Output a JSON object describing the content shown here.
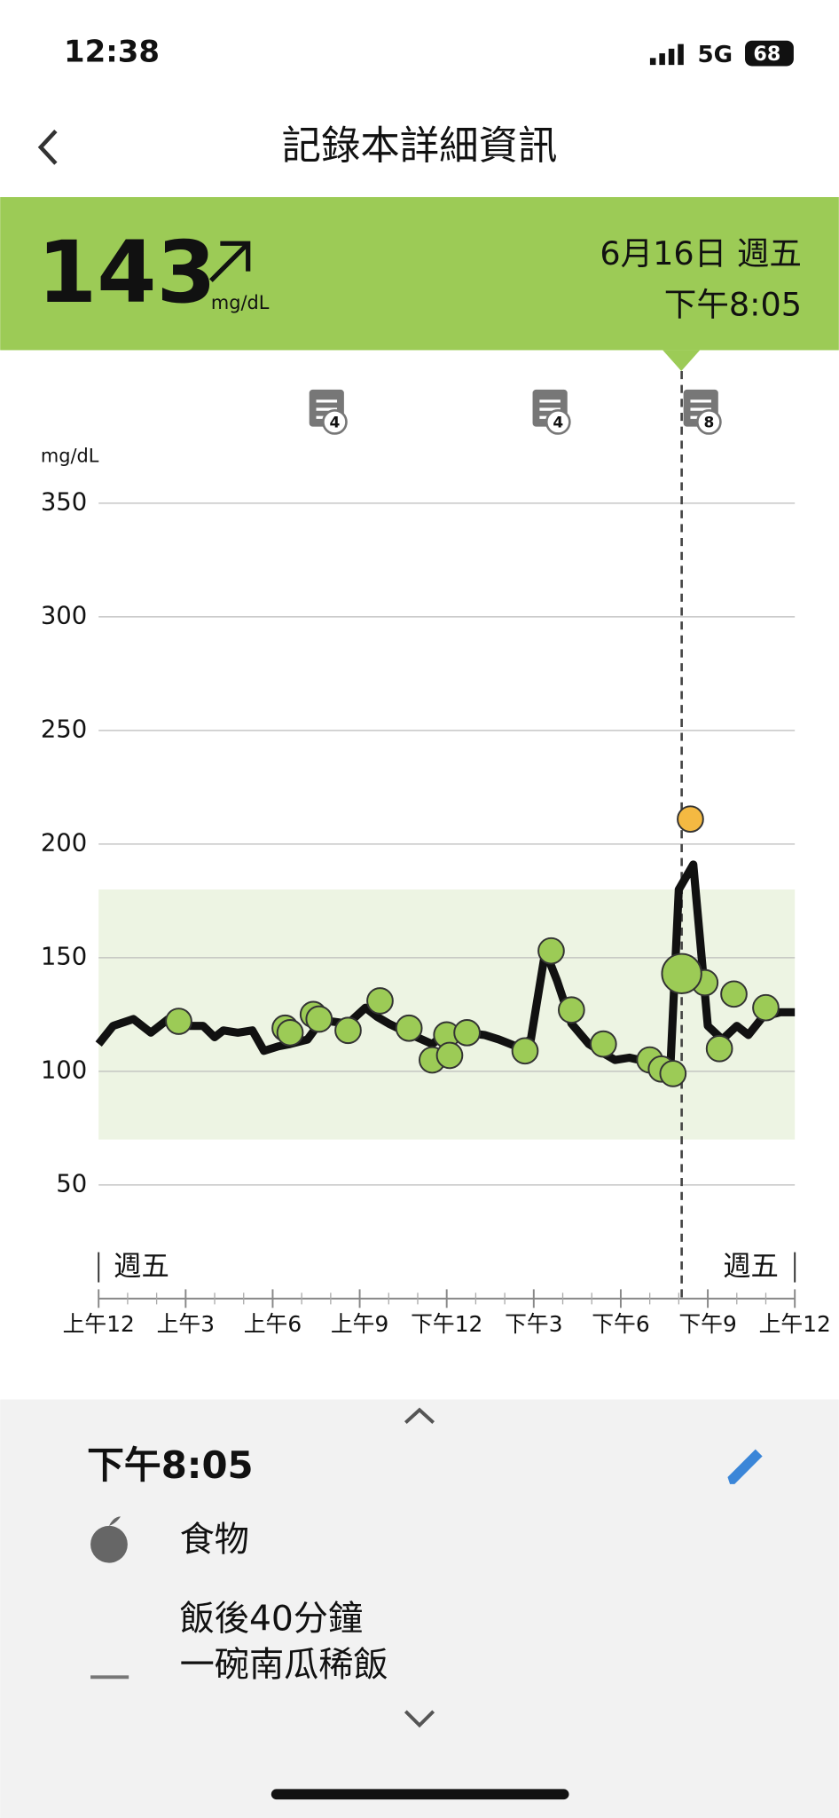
{
  "status_bar": {
    "time": "12:38",
    "network": "5G",
    "battery": "68"
  },
  "header": {
    "title": "記錄本詳細資訊"
  },
  "reading": {
    "unit": "mg/dL",
    "date": "6月16日 週五",
    "time": "下午8:05"
  },
  "chart_data": {
    "type": "line",
    "y_label": "mg/dL",
    "xlim": [
      0,
      24
    ],
    "ylim": [
      0,
      350
    ],
    "yticks": [
      50,
      100,
      150,
      200,
      250,
      300,
      350
    ],
    "xticks": [
      {
        "value": 0,
        "label": "上午12"
      },
      {
        "value": 3,
        "label": "上午3"
      },
      {
        "value": 6,
        "label": "上午6"
      },
      {
        "value": 9,
        "label": "上午9"
      },
      {
        "value": 12,
        "label": "下午12"
      },
      {
        "value": 15,
        "label": "下午3"
      },
      {
        "value": 18,
        "label": "下午6"
      },
      {
        "value": 21,
        "label": "下午9"
      },
      {
        "value": 24,
        "label": "上午12"
      }
    ],
    "xminorticks": [
      1,
      2,
      4,
      5,
      7,
      8,
      10,
      11,
      13,
      14,
      16,
      17,
      19,
      20,
      22,
      23
    ],
    "grid": true,
    "day_labels": [
      "週五",
      "週五"
    ],
    "target_range": [
      70,
      180
    ],
    "target_color": "#edf4e3",
    "line": {
      "color": "#111111",
      "x": [
        0,
        0.5,
        1.2,
        1.8,
        2.4,
        3,
        3.6,
        4,
        4.3,
        4.8,
        5.3,
        5.7,
        6.2,
        6.6,
        7.2,
        7.6,
        8,
        8.6,
        9.2,
        9.6,
        10,
        10.8,
        11.5,
        12,
        12.6,
        13.3,
        13.8,
        14.4,
        14.9,
        15.4,
        15.8,
        16.3,
        16.9,
        17.4,
        17.8,
        18.3,
        19,
        19.7,
        20,
        20.5,
        21,
        21.5,
        22,
        22.4,
        22.9,
        23.5,
        24
      ],
      "values": [
        112,
        120,
        123,
        117,
        123,
        120,
        120,
        115,
        118,
        117,
        118,
        109,
        111,
        112,
        114,
        121,
        122,
        121,
        128,
        124,
        121,
        116,
        112,
        117,
        117,
        116,
        114,
        111,
        114,
        153,
        140,
        121,
        112,
        108,
        105,
        106,
        104,
        99,
        180,
        191,
        120,
        114,
        120,
        116,
        124,
        126,
        126
      ]
    },
    "points": {
      "color": "#9ccb56",
      "x": [
        2.76,
        6.43,
        6.6,
        7.4,
        7.6,
        8.6,
        9.7,
        10.7,
        11.5,
        12,
        12.1,
        12.7,
        14.7,
        15.6,
        16.3,
        17.4,
        19,
        19.4,
        19.8,
        20.9,
        21.4,
        21.9,
        23
      ],
      "values": [
        122,
        119,
        117,
        125,
        123,
        118,
        131,
        119,
        105,
        116,
        107,
        117,
        109,
        153,
        127,
        112,
        105,
        101,
        99,
        139,
        110,
        134,
        128
      ]
    },
    "highlight": {
      "color": "#f4b942",
      "x": [
        20.4
      ],
      "values": [
        211
      ]
    },
    "selected": {
      "x": 20.1,
      "value": 143
    },
    "notes": [
      {
        "x": 7.9,
        "count": 4
      },
      {
        "x": 15.6,
        "count": 4
      },
      {
        "x": 20.8,
        "count": 8
      }
    ]
  },
  "detail": {
    "time": "下午8:05",
    "category": "食物",
    "note_lines": [
      "飯後40分鐘",
      "一碗南瓜稀飯"
    ]
  }
}
